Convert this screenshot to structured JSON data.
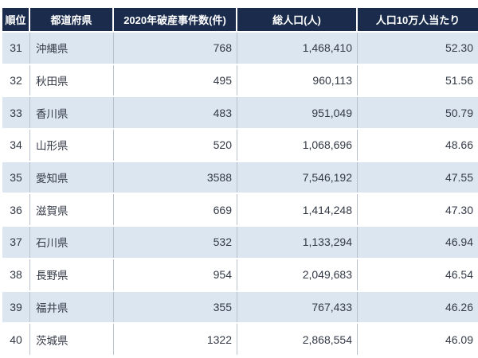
{
  "table": {
    "columns": [
      {
        "label": "順位"
      },
      {
        "label": "都道府県"
      },
      {
        "label": "2020年破産事件数(件)"
      },
      {
        "label": "総人口(人)"
      },
      {
        "label": "人口10万人当たり"
      }
    ],
    "rows": [
      {
        "rank": "31",
        "prefecture": "沖縄県",
        "cases": "768",
        "population": "1,468,410",
        "per_100k": "52.30"
      },
      {
        "rank": "32",
        "prefecture": "秋田県",
        "cases": "495",
        "population": "960,113",
        "per_100k": "51.56"
      },
      {
        "rank": "33",
        "prefecture": "香川県",
        "cases": "483",
        "population": "951,049",
        "per_100k": "50.79"
      },
      {
        "rank": "34",
        "prefecture": "山形県",
        "cases": "520",
        "population": "1,068,696",
        "per_100k": "48.66"
      },
      {
        "rank": "35",
        "prefecture": "愛知県",
        "cases": "3588",
        "population": "7,546,192",
        "per_100k": "47.55"
      },
      {
        "rank": "36",
        "prefecture": "滋賀県",
        "cases": "669",
        "population": "1,414,248",
        "per_100k": "47.30"
      },
      {
        "rank": "37",
        "prefecture": "石川県",
        "cases": "532",
        "population": "1,133,294",
        "per_100k": "46.94"
      },
      {
        "rank": "38",
        "prefecture": "長野県",
        "cases": "954",
        "population": "2,049,683",
        "per_100k": "46.54"
      },
      {
        "rank": "39",
        "prefecture": "福井県",
        "cases": "355",
        "population": "767,433",
        "per_100k": "46.26"
      },
      {
        "rank": "40",
        "prefecture": "茨城県",
        "cases": "1322",
        "population": "2,868,554",
        "per_100k": "46.09"
      }
    ]
  },
  "colors": {
    "header_bg": "#1a2b4c",
    "header_text": "#ffffff",
    "row_alt_bg": "#dce6f1",
    "row_bg": "#ffffff",
    "cell_text": "#333a46",
    "grid_line": "#b7c0cb"
  },
  "chart_data": {
    "type": "table",
    "columns": [
      "順位",
      "都道府県",
      "2020年破産事件数(件)",
      "総人口(人)",
      "人口10万人当たり"
    ],
    "rows": [
      [
        31,
        "沖縄県",
        768,
        1468410,
        52.3
      ],
      [
        32,
        "秋田県",
        495,
        960113,
        51.56
      ],
      [
        33,
        "香川県",
        483,
        951049,
        50.79
      ],
      [
        34,
        "山形県",
        520,
        1068696,
        48.66
      ],
      [
        35,
        "愛知県",
        3588,
        7546192,
        47.55
      ],
      [
        36,
        "滋賀県",
        669,
        1414248,
        47.3
      ],
      [
        37,
        "石川県",
        532,
        1133294,
        46.94
      ],
      [
        38,
        "長野県",
        954,
        2049683,
        46.54
      ],
      [
        39,
        "福井県",
        355,
        767433,
        46.26
      ],
      [
        40,
        "茨城県",
        1322,
        2868554,
        46.09
      ]
    ]
  }
}
